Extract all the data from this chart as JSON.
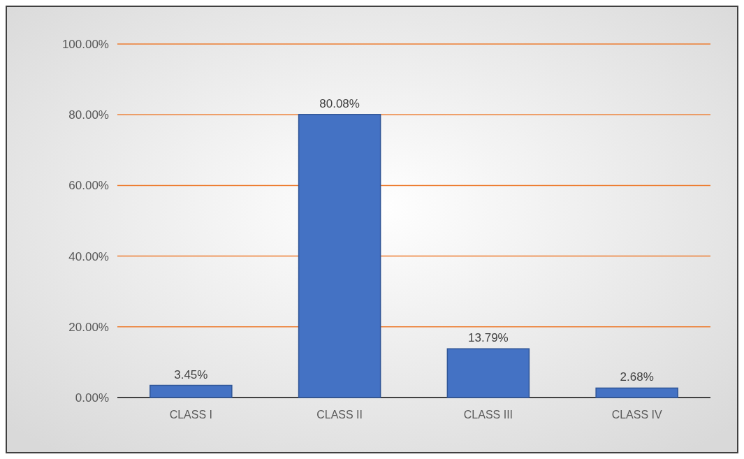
{
  "chart_data": {
    "type": "bar",
    "categories": [
      "CLASS I",
      "CLASS II",
      "CLASS III",
      "CLASS IV"
    ],
    "values": [
      3.45,
      80.08,
      13.79,
      2.68
    ],
    "value_labels": [
      "3.45%",
      "80.08%",
      "13.79%",
      "2.68%"
    ],
    "color": "#4472c4",
    "ylim": [
      0,
      100
    ],
    "yticks": [
      {
        "value": 0,
        "label": "0.00%"
      },
      {
        "value": 20,
        "label": "20.00%"
      },
      {
        "value": 40,
        "label": "40.00%"
      },
      {
        "value": 60,
        "label": "60.00%"
      },
      {
        "value": 80,
        "label": "80.00%"
      },
      {
        "value": 100,
        "label": "100.00%"
      }
    ],
    "grid": "y"
  }
}
